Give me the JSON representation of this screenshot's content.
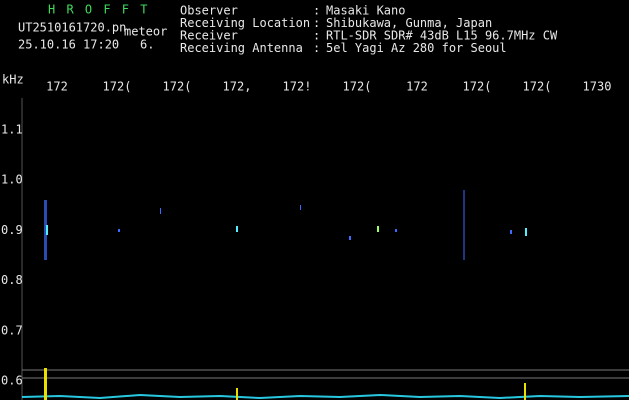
{
  "header": {
    "title": "H R O F F T",
    "file": "UT2510161720.pn",
    "tag": "meteor",
    "timestamp": "25.10.16 17:20",
    "counter": "6."
  },
  "info": [
    {
      "label": "Observer",
      "colon": ":",
      "value": "Masaki Kano"
    },
    {
      "label": "Receiving Location",
      "colon": ":",
      "value": "Shibukawa, Gunma, Japan"
    },
    {
      "label": "Receiver",
      "colon": ":",
      "value": "RTL-SDR SDR# 43dB L15 96.7MHz CW"
    },
    {
      "label": "Receiving Antenna",
      "colon": ":",
      "value": "5el Yagi Az 280 for Seoul"
    }
  ],
  "axis": {
    "unit": "kHz",
    "y_ticks": [
      "1.1",
      "1.0",
      "0.9",
      "0.8",
      "0.7",
      "0.6"
    ],
    "x_ticks": [
      "172",
      "172(",
      "172(",
      "172,",
      "172!",
      "172(",
      "172",
      "172(",
      "172(",
      "1730"
    ]
  }
}
